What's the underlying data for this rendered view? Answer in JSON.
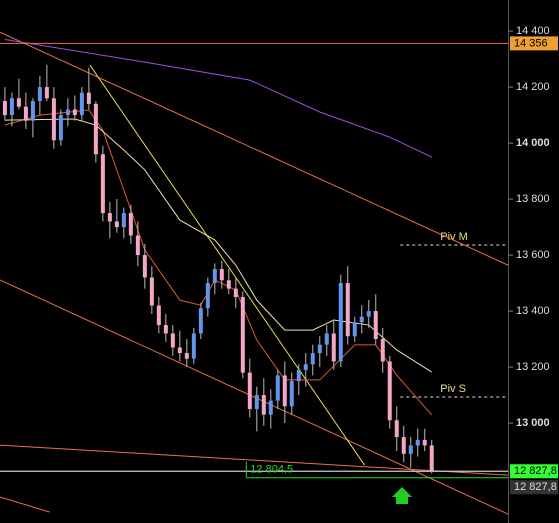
{
  "chart_data": {
    "type": "candlestick",
    "categories": [
      null,
      null,
      null,
      null,
      null,
      null,
      null,
      null,
      null,
      null,
      null,
      null,
      null,
      null,
      null,
      null,
      null,
      null,
      null,
      null,
      null,
      null,
      null,
      null,
      null,
      null,
      null,
      null,
      null,
      null,
      null,
      null,
      null,
      null,
      null,
      null,
      null,
      null,
      null,
      null,
      null,
      null,
      null,
      null,
      null,
      null,
      null,
      null,
      null,
      null,
      null,
      null,
      null,
      null,
      null,
      null,
      null,
      null,
      null,
      null,
      null,
      null
    ],
    "candles": {
      "open": [
        14150,
        14100,
        14160,
        14130,
        14080,
        14150,
        14200,
        14160,
        14010,
        14100,
        14120,
        14100,
        14180,
        14140,
        13960,
        13750,
        13720,
        13700,
        13750,
        13670,
        13600,
        13520,
        13420,
        13350,
        13320,
        13270,
        13250,
        13230,
        13320,
        13410,
        13500,
        13550,
        13510,
        13480,
        13450,
        13180,
        13050,
        13100,
        13030,
        13080,
        13170,
        13060,
        13150,
        13190,
        13210,
        13250,
        13280,
        13320,
        13220,
        13500,
        13310,
        13360,
        13380,
        13400,
        13300,
        13220,
        13010,
        12950,
        12890,
        12920,
        12940,
        12920
      ],
      "high": [
        14200,
        14180,
        14230,
        14180,
        14160,
        14240,
        14280,
        14200,
        14120,
        14160,
        14170,
        14200,
        14270,
        14150,
        13990,
        13790,
        13800,
        13770,
        13780,
        13720,
        13640,
        13560,
        13450,
        13390,
        13350,
        13330,
        13300,
        13340,
        13430,
        13520,
        13570,
        13580,
        13550,
        13520,
        13470,
        13230,
        13130,
        13160,
        13120,
        13190,
        13220,
        13180,
        13210,
        13250,
        13280,
        13310,
        13350,
        13370,
        13530,
        13560,
        13380,
        13420,
        13440,
        13460,
        13340,
        13240,
        13060,
        12990,
        12950,
        12980,
        12980,
        12940
      ],
      "low": [
        14080,
        14060,
        14120,
        14050,
        14020,
        14100,
        14150,
        13980,
        13990,
        14060,
        14080,
        14080,
        14120,
        13930,
        13720,
        13660,
        13680,
        13660,
        13640,
        13560,
        13480,
        13390,
        13320,
        13290,
        13240,
        13220,
        13200,
        13210,
        13300,
        13380,
        13460,
        13480,
        13460,
        13410,
        13160,
        13020,
        12970,
        12990,
        12980,
        13050,
        13000,
        13030,
        13100,
        13130,
        13170,
        13200,
        13240,
        13190,
        13200,
        13280,
        13290,
        13320,
        13340,
        13280,
        13180,
        12980,
        12900,
        12860,
        12840,
        12880,
        12900,
        12820
      ],
      "close": [
        14100,
        14160,
        14130,
        14080,
        14150,
        14200,
        14160,
        14010,
        14100,
        14120,
        14100,
        14180,
        14140,
        13960,
        13750,
        13720,
        13700,
        13750,
        13670,
        13600,
        13520,
        13420,
        13350,
        13320,
        13270,
        13250,
        13230,
        13320,
        13410,
        13500,
        13550,
        13510,
        13480,
        13450,
        13180,
        13050,
        13100,
        13030,
        13080,
        13170,
        13060,
        13150,
        13190,
        13210,
        13250,
        13280,
        13320,
        13220,
        13500,
        13310,
        13360,
        13380,
        13400,
        13300,
        13220,
        13010,
        12950,
        12890,
        12920,
        12940,
        12920,
        12827.8
      ]
    },
    "up_color": "#6495ed",
    "down_color": "#f4a6c8",
    "wick_color": "#bbbbbb",
    "xlim": [
      -0.7,
      71.9
    ],
    "ylim": [
      12643,
      14511
    ],
    "yticks": [
      {
        "value": 13000,
        "label": "13 000"
      },
      {
        "value": 13200,
        "label": "13 200"
      },
      {
        "value": 13400,
        "label": "13 400"
      },
      {
        "value": 13600,
        "label": "13 600"
      },
      {
        "value": 13800,
        "label": "13 800"
      },
      {
        "value": 14000,
        "label": "14 000"
      },
      {
        "value": 14200,
        "label": "14 200"
      },
      {
        "value": 14400,
        "label": "14 400"
      }
    ],
    "lines": [
      {
        "color": "#a050e0",
        "x": [
          0,
          20,
          35,
          45,
          55,
          61
        ],
        "values": [
          14370,
          14289,
          14225,
          14111,
          14021,
          13950
        ]
      },
      {
        "color": "#e05a30",
        "x": [
          0,
          5,
          12,
          14,
          17,
          20,
          25,
          28,
          30,
          33,
          36,
          40,
          45,
          50,
          53,
          56,
          61
        ],
        "values": [
          14064,
          14100,
          14118,
          14046,
          13832,
          13618,
          13439,
          13421,
          13511,
          13475,
          13296,
          13154,
          13154,
          13279,
          13279,
          13171,
          13029
        ]
      },
      {
        "color": "#e8e0b0",
        "x": [
          0,
          10,
          13,
          17,
          20,
          25,
          30,
          33,
          36,
          40,
          44,
          47,
          52,
          56,
          61
        ],
        "values": [
          14082,
          14086,
          14064,
          13975,
          13904,
          13725,
          13654,
          13564,
          13439,
          13332,
          13332,
          13368,
          13350,
          13261,
          13182
        ]
      }
    ],
    "trendlines": [
      {
        "color": "#e8704a",
        "x": [
          -0.7,
          71.9
        ],
        "values": [
          14396,
          13564
        ]
      },
      {
        "color": "#e8704a",
        "x": [
          -0.7,
          71.9
        ],
        "values": [
          13511,
          12675
        ]
      },
      {
        "color": "#e8704a",
        "x": [
          -0.7,
          71.9
        ],
        "values": [
          12921,
          12814
        ]
      },
      {
        "color": "#e8704a",
        "x": [
          -0.7,
          6.4
        ],
        "values": [
          12736,
          12682
        ]
      },
      {
        "color": "#e8e040",
        "x": [
          12.14,
          51.4
        ],
        "values": [
          14279,
          12850
        ]
      }
    ],
    "levels": [
      {
        "value": 14356,
        "label": "14 356",
        "color": "#e8704a",
        "tag_color": "#f0a030",
        "tag_text": "#000000"
      },
      {
        "value": 12827.8,
        "label": "12 827,8",
        "color": "#cccccc",
        "tag_color": "#33ff33",
        "tag_text": "#000000"
      },
      {
        "value": 12827.8,
        "label": "12 827,8",
        "color": "#cccccc",
        "tag_color": "#333333",
        "tag_text": "#dddddd"
      }
    ],
    "support": {
      "value": 12804.5,
      "label": "12 804,5",
      "color": "#22dd22",
      "x": 34.5
    },
    "pivots": [
      {
        "value": 13636,
        "label": "Piv M"
      },
      {
        "value": 13093,
        "label": "Piv S"
      }
    ],
    "pivot_x": 56.5
  }
}
